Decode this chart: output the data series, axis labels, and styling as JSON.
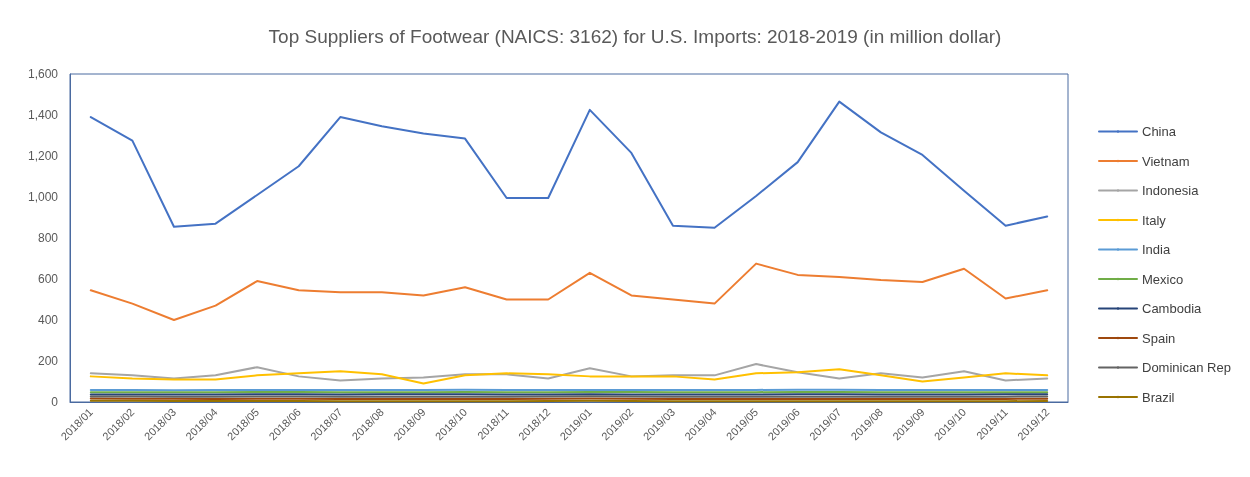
{
  "chart_data": {
    "type": "line",
    "title": "Top Suppliers of Footwear (NAICS: 3162) for U.S. Imports: 2018-2019 (in million dollar)",
    "categories": [
      "2018/01",
      "2018/02",
      "2018/03",
      "2018/04",
      "2018/05",
      "2018/06",
      "2018/07",
      "2018/08",
      "2018/09",
      "2018/10",
      "2018/11",
      "2018/12",
      "2019/01",
      "2019/02",
      "2019/03",
      "2019/04",
      "2019/05",
      "2019/06",
      "2019/07",
      "2019/08",
      "2019/09",
      "2019/10",
      "2019/11",
      "2019/12"
    ],
    "series": [
      {
        "name": "China",
        "color": "#4472c4",
        "values": [
          1390,
          1275,
          855,
          870,
          1010,
          1150,
          1390,
          1345,
          1310,
          1285,
          995,
          995,
          1425,
          1215,
          860,
          850,
          1005,
          1170,
          1465,
          1315,
          1205,
          1030,
          860,
          905
        ]
      },
      {
        "name": "Vietnam",
        "color": "#ed7d31",
        "values": [
          545,
          480,
          400,
          470,
          590,
          545,
          535,
          535,
          520,
          560,
          500,
          500,
          630,
          520,
          500,
          480,
          675,
          620,
          610,
          595,
          585,
          650,
          505,
          545
        ]
      },
      {
        "name": "Indonesia",
        "color": "#a5a5a5",
        "values": [
          140,
          130,
          115,
          130,
          170,
          125,
          105,
          115,
          120,
          135,
          135,
          115,
          165,
          125,
          130,
          130,
          185,
          145,
          115,
          140,
          120,
          150,
          105,
          115
        ]
      },
      {
        "name": "Italy",
        "color": "#ffc000",
        "values": [
          125,
          115,
          110,
          110,
          130,
          140,
          150,
          135,
          90,
          130,
          140,
          135,
          125,
          125,
          125,
          110,
          140,
          145,
          160,
          130,
          100,
          120,
          140,
          130
        ]
      },
      {
        "name": "India",
        "color": "#5b9bd5",
        "values": [
          58,
          58,
          57,
          58,
          59,
          59,
          59,
          59,
          59,
          60,
          59,
          58,
          59,
          59,
          58,
          58,
          59,
          60,
          60,
          59,
          59,
          58,
          58,
          58
        ]
      },
      {
        "name": "Mexico",
        "color": "#70ad47",
        "values": [
          48,
          48,
          47,
          48,
          49,
          49,
          48,
          48,
          48,
          49,
          48,
          48,
          49,
          49,
          47,
          47,
          48,
          49,
          49,
          48,
          48,
          48,
          48,
          48
        ]
      },
      {
        "name": "Cambodia",
        "color": "#264478",
        "values": [
          37,
          37,
          36,
          37,
          38,
          38,
          37,
          38,
          38,
          38,
          37,
          37,
          38,
          37,
          36,
          36,
          37,
          38,
          38,
          37,
          37,
          37,
          38,
          38
        ]
      },
      {
        "name": "Spain",
        "color": "#9e480e",
        "values": [
          17,
          16,
          16,
          15,
          16,
          16,
          15,
          15,
          15,
          15,
          15,
          16,
          17,
          16,
          15,
          15,
          15,
          15,
          15,
          15,
          15,
          15,
          15,
          16
        ]
      },
      {
        "name": "Dominican Rep",
        "color": "#636363",
        "values": [
          27,
          27,
          26,
          26,
          27,
          27,
          26,
          26,
          26,
          26,
          26,
          27,
          28,
          27,
          26,
          26,
          26,
          26,
          26,
          26,
          26,
          26,
          26,
          27
        ]
      },
      {
        "name": "Brazil",
        "color": "#997300",
        "values": [
          6,
          6,
          5,
          5,
          5,
          5,
          4,
          4,
          4,
          4,
          4,
          5,
          6,
          5,
          4,
          4,
          4,
          4,
          4,
          4,
          4,
          4,
          4,
          5
        ]
      }
    ],
    "ylim": [
      0,
      1600
    ],
    "yticks": [
      0,
      200,
      400,
      600,
      800,
      {
        "value": 1000,
        "label": "1,000"
      },
      {
        "value": 1200,
        "label": "1,200"
      },
      {
        "value": 1400,
        "label": "1,400"
      },
      {
        "value": 1600,
        "label": "1,600"
      }
    ],
    "grid": false,
    "legend": "right",
    "marker": "none",
    "line_style": "solid"
  }
}
